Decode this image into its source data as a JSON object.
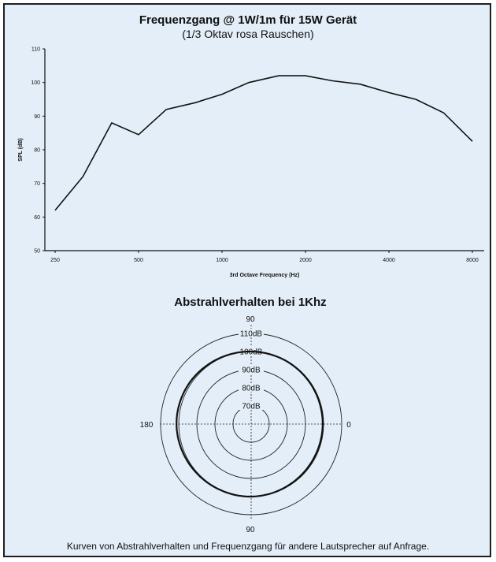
{
  "page": {
    "caption": "Kurven von Abstrahlverhalten und Frequenzgang für andere Lautsprecher auf Anfrage."
  },
  "colors": {
    "background": "#e3eef8",
    "frame": "#1f1f1f",
    "line": "#111111",
    "grid": "#222222"
  },
  "chart_data": [
    {
      "type": "line",
      "title": "Frequenzgang @ 1W/1m für 15W Gerät",
      "subtitle": "(1/3 Oktav rosa Rauschen)",
      "xlabel": "3rd Octave Frequency (Hz)",
      "ylabel": "SPL (dB)",
      "x_scale": "log",
      "x_ticks": [
        250,
        500,
        1000,
        2000,
        4000,
        8000
      ],
      "x_tick_labels": [
        "250",
        "500",
        "1000",
        "2000",
        "4000",
        "8000"
      ],
      "ylim": [
        50,
        110
      ],
      "y_ticks": [
        50,
        60,
        70,
        80,
        90,
        100,
        110
      ],
      "y_tick_labels": [
        "50",
        "60",
        "70",
        "80",
        "90",
        "100",
        "110"
      ],
      "grid": false,
      "series": [
        {
          "x": [
            250,
            315,
            400,
            500,
            630,
            800,
            1000,
            1250,
            1600,
            2000,
            2500,
            3150,
            4000,
            5000,
            6300,
            8000
          ],
          "values": [
            62,
            72,
            88,
            84.5,
            92,
            94,
            96.5,
            100,
            102,
            102,
            100.5,
            99.5,
            97,
            95,
            91,
            82.5
          ]
        }
      ]
    },
    {
      "type": "polar",
      "title": "Abstrahlverhalten bei 1Khz",
      "ring_labels": [
        "70dB",
        "80dB",
        "90dB",
        "100dB",
        "110dB"
      ],
      "ring_values": [
        70,
        80,
        90,
        100,
        110
      ],
      "angle_labels": {
        "top": "90",
        "bottom": "90",
        "left": "180",
        "right": "0"
      },
      "curve_description_values_note": null,
      "curve": {
        "angles_deg": [
          0,
          30,
          60,
          90,
          120,
          150,
          180,
          210,
          240,
          270,
          300,
          330
        ],
        "levels_db": [
          99.5,
          99.6,
          99.8,
          100,
          100.4,
          101,
          101.2,
          100.7,
          100.2,
          100,
          99.6,
          99.4
        ]
      }
    }
  ]
}
